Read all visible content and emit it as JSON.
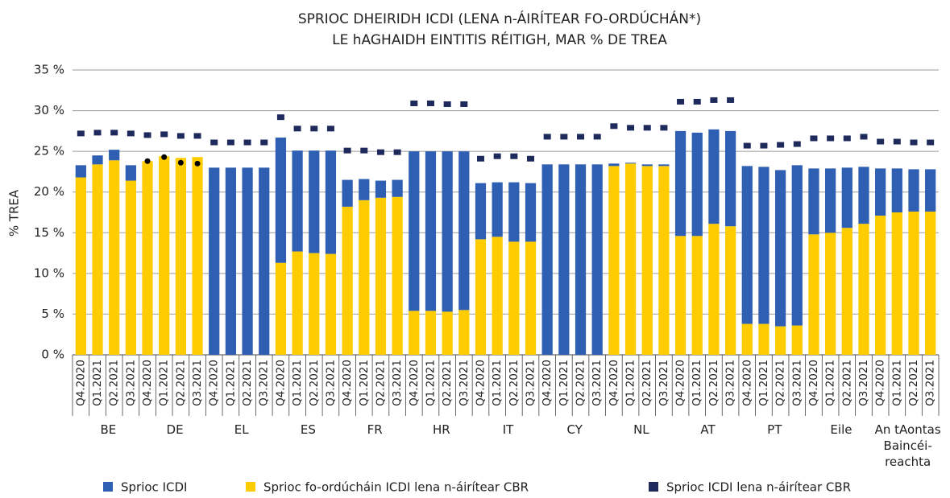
{
  "chart_data": {
    "type": "stacked_bar",
    "title": [
      "SPRIOC DHEIRIDH ICDI (LENA n-ÁIRÍTEAR FO-ORDÚCHÁN*)",
      "LE hAGHAIDH EINTITIS RÉITIGH, MAR % DE TREA"
    ],
    "y_label": "% TREA",
    "ylim": [
      0,
      35
    ],
    "yticks": [
      {
        "value": 0,
        "label": "0 %"
      },
      {
        "value": 5,
        "label": "5 %"
      },
      {
        "value": 10,
        "label": "10 %"
      },
      {
        "value": 15,
        "label": "15 %"
      },
      {
        "value": 20,
        "label": "20 %"
      },
      {
        "value": 25,
        "label": "25 %"
      },
      {
        "value": 30,
        "label": "30 %"
      },
      {
        "value": 35,
        "label": "35 %"
      }
    ],
    "grid": true,
    "groups": [
      {
        "name": "BE",
        "categories": [
          "Q4.2020",
          "Q1.2021",
          "Q2.2021",
          "Q3.2021"
        ]
      },
      {
        "name": "DE",
        "categories": [
          "Q4.2020",
          "Q1.2021",
          "Q2.2021",
          "Q3.2021"
        ]
      },
      {
        "name": "EL",
        "categories": [
          "Q4.2020",
          "Q1.2021",
          "Q2.2021",
          "Q3.2021"
        ]
      },
      {
        "name": "ES",
        "categories": [
          "Q4.2020",
          "Q1.2021",
          "Q2.2021",
          "Q3.2021"
        ]
      },
      {
        "name": "FR",
        "categories": [
          "Q4.2020",
          "Q1.2021",
          "Q2.2021",
          "Q3.2021"
        ]
      },
      {
        "name": "HR",
        "categories": [
          "Q4.2020",
          "Q1.2021",
          "Q2.2021",
          "Q3.2021"
        ]
      },
      {
        "name": "IT",
        "categories": [
          "Q4.2020",
          "Q1.2021",
          "Q2.2021",
          "Q3.2021"
        ]
      },
      {
        "name": "CY",
        "categories": [
          "Q4.2020",
          "Q1.2021",
          "Q2.2021",
          "Q3.2021"
        ]
      },
      {
        "name": "NL",
        "categories": [
          "Q4.2020",
          "Q1.2021",
          "Q2.2021",
          "Q3.2021"
        ]
      },
      {
        "name": "AT",
        "categories": [
          "Q4.2020",
          "Q1.2021",
          "Q2.2021",
          "Q3.2021"
        ]
      },
      {
        "name": "PT",
        "categories": [
          "Q4.2020",
          "Q1.2021",
          "Q2.2021",
          "Q3.2021"
        ]
      },
      {
        "name": "Eile",
        "categories": [
          "Q4.2020",
          "Q1.2021",
          "Q2.2021",
          "Q3.2021"
        ]
      },
      {
        "name": "An tAontas Baincéi-reachta",
        "categories": [
          "Q4.2020",
          "Q1.2021",
          "Q2.2021",
          "Q3.2021"
        ]
      }
    ],
    "series": [
      {
        "name": "Sprioc fo-ordúcháin ICDI lena n-áirítear CBR",
        "color": "#ffcc00",
        "kind": "bar",
        "values": [
          21.8,
          23.4,
          23.9,
          21.4,
          23.8,
          24.4,
          24.2,
          24.3,
          0,
          0,
          0,
          0,
          11.3,
          12.7,
          12.5,
          12.4,
          18.2,
          19.0,
          19.3,
          19.4,
          5.4,
          5.4,
          5.3,
          5.5,
          14.2,
          14.5,
          13.9,
          13.9,
          0,
          0,
          0,
          0,
          23.2,
          23.5,
          23.2,
          23.2,
          14.6,
          14.6,
          16.1,
          15.8,
          3.8,
          3.8,
          3.5,
          3.6,
          14.8,
          15.0,
          15.6,
          16.1,
          17.1,
          17.5,
          17.6,
          17.6
        ]
      },
      {
        "name": "Sprioc ICDI",
        "color": "#2f5fb3",
        "kind": "bar",
        "values": [
          1.5,
          1.1,
          1.3,
          1.9,
          0,
          0,
          0,
          0,
          23.0,
          23.0,
          23.0,
          23.0,
          15.4,
          12.4,
          12.6,
          12.7,
          3.3,
          2.6,
          2.1,
          2.1,
          19.6,
          19.6,
          19.7,
          19.5,
          6.9,
          6.7,
          7.3,
          7.2,
          23.4,
          23.4,
          23.4,
          23.4,
          0.3,
          0.1,
          0.2,
          0.2,
          12.9,
          12.7,
          11.6,
          11.7,
          19.4,
          19.3,
          19.2,
          19.7,
          8.1,
          7.9,
          7.4,
          7.0,
          5.8,
          5.4,
          5.2,
          5.2
        ]
      },
      {
        "name": "Sprioc ICDI lena n-áirítear CBR",
        "color": "#1f2a5c",
        "kind": "square",
        "values": [
          27.2,
          27.3,
          27.3,
          27.2,
          27.0,
          27.1,
          26.9,
          26.9,
          26.1,
          26.1,
          26.1,
          26.1,
          29.2,
          27.8,
          27.8,
          27.8,
          25.1,
          25.1,
          24.9,
          24.9,
          30.9,
          30.9,
          30.8,
          30.8,
          24.1,
          24.4,
          24.4,
          24.1,
          26.8,
          26.8,
          26.8,
          26.8,
          28.1,
          27.9,
          27.9,
          27.9,
          31.1,
          31.1,
          31.3,
          31.3,
          25.7,
          25.7,
          25.8,
          25.9,
          26.6,
          26.6,
          26.6,
          26.8,
          26.2,
          26.2,
          26.1,
          26.1
        ]
      },
      {
        "color": "#000000",
        "kind": "dot",
        "values": [
          null,
          null,
          null,
          null,
          23.8,
          24.3,
          23.6,
          23.5,
          null,
          null,
          null,
          null,
          null,
          null,
          null,
          null,
          null,
          null,
          null,
          null,
          null,
          null,
          null,
          null,
          null,
          null,
          null,
          null,
          null,
          null,
          null,
          null,
          null,
          null,
          null,
          null,
          null,
          null,
          null,
          null,
          null,
          null,
          null,
          null,
          null,
          null,
          null,
          null,
          null,
          null,
          null,
          null
        ]
      }
    ]
  }
}
